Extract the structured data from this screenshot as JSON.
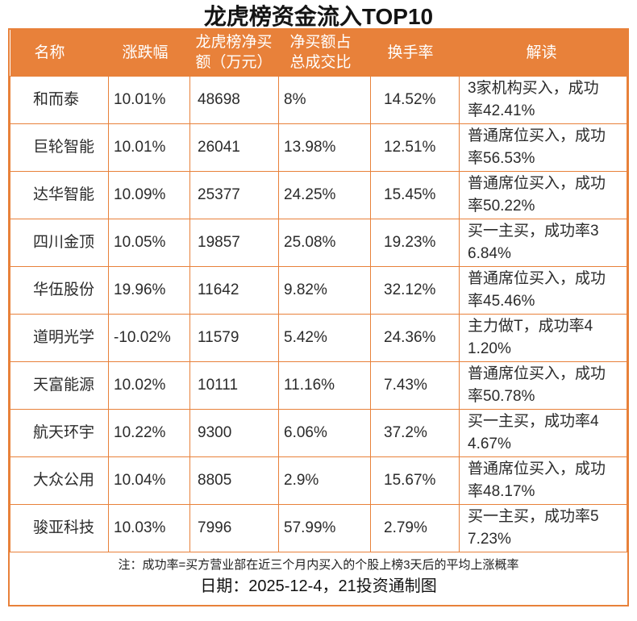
{
  "colors": {
    "accent": "#E8813A",
    "grid": "#E8813A",
    "header_text": "#FFFFFF",
    "body_text": "#2B2B2B"
  },
  "chart_data": {
    "type": "table",
    "title": "龙虎榜资金流入TOP10",
    "columns": [
      {
        "key": "name",
        "label": "名称"
      },
      {
        "key": "change_pct",
        "label": "涨跌幅"
      },
      {
        "key": "net_buy_wan",
        "label": "龙虎榜净买\n额（万元）"
      },
      {
        "key": "net_buy_ratio",
        "label": "净买额占\n总成交比"
      },
      {
        "key": "turnover",
        "label": "换手率"
      },
      {
        "key": "interpretation",
        "label": "解读"
      }
    ],
    "rows": [
      [
        "和而泰",
        "10.01%",
        "48698",
        "8%",
        "14.52%",
        "3家机构买入，成功\n率42.41%"
      ],
      [
        "巨轮智能",
        "10.01%",
        "26041",
        "13.98%",
        "12.51%",
        "普通席位买入，成功\n率56.53%"
      ],
      [
        "达华智能",
        "10.09%",
        "25377",
        "24.25%",
        "15.45%",
        "普通席位买入，成功\n率50.22%"
      ],
      [
        "四川金顶",
        "10.05%",
        "19857",
        "25.08%",
        "19.23%",
        "买一主买，成功率3\n6.84%"
      ],
      [
        "华伍股份",
        "19.96%",
        "11642",
        "9.82%",
        "32.12%",
        "普通席位买入，成功\n率45.46%"
      ],
      [
        "道明光学",
        "-10.02%",
        "11579",
        "5.42%",
        "24.36%",
        "主力做T，成功率4\n1.20%"
      ],
      [
        "天富能源",
        "10.02%",
        "10111",
        "11.16%",
        "7.43%",
        "普通席位买入，成功\n率50.78%"
      ],
      [
        "航天环宇",
        "10.22%",
        "9300",
        "6.06%",
        "37.2%",
        "买一主买，成功率4\n4.67%"
      ],
      [
        "大众公用",
        "10.04%",
        "8805",
        "2.9%",
        "15.67%",
        "普通席位买入，成功\n率48.17%"
      ],
      [
        "骏亚科技",
        "10.03%",
        "7996",
        "57.99%",
        "2.79%",
        "买一主买，成功率5\n7.23%"
      ]
    ],
    "note": "注：成功率=买方营业部在近三个月内买入的个股上榜3天后的平均上涨概率",
    "date_line": "日期：2025-12-4，21投资通制图"
  }
}
